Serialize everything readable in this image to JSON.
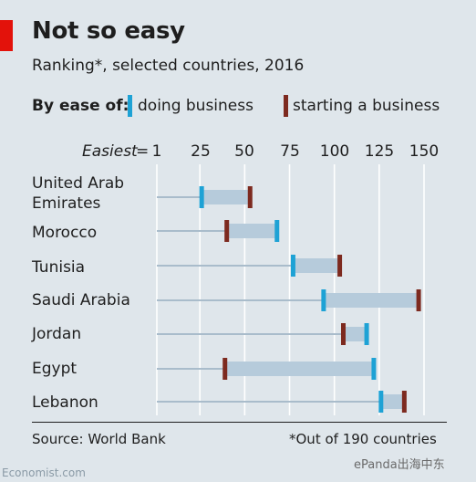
{
  "header": {
    "title": "Not so easy",
    "subtitle": "Ranking*, selected countries, 2016"
  },
  "legend": {
    "label": "By ease of:",
    "items": [
      {
        "name": "doing business",
        "color": "#1ea2d5"
      },
      {
        "name": "starting a business",
        "color": "#7d2a1f"
      }
    ]
  },
  "axis": {
    "prefix": "Easiest",
    "eq_sign": "=",
    "ticks": [
      "1",
      "25",
      "50",
      "75",
      "100",
      "125",
      "150"
    ]
  },
  "chart_data": {
    "type": "dot-range",
    "title": "Not so easy",
    "subtitle": "Ranking*, selected countries, 2016",
    "x_range": [
      1,
      150
    ],
    "x_ticks": [
      1,
      25,
      50,
      75,
      100,
      125,
      150
    ],
    "grid": true,
    "legend_placement": "top",
    "categories": [
      "United Arab\nEmirates",
      "Morocco",
      "Tunisia",
      "Saudi Arabia",
      "Jordan",
      "Egypt",
      "Lebanon"
    ],
    "series": [
      {
        "name": "doing business",
        "color": "#1ea2d5",
        "values": [
          26,
          68,
          77,
          94,
          118,
          122,
          126
        ]
      },
      {
        "name": "starting a business",
        "color": "#7d2a1f",
        "values": [
          53,
          40,
          103,
          147,
          105,
          39,
          139
        ]
      }
    ]
  },
  "footer": {
    "source": "Source: World Bank",
    "note": "*Out of 190 countries",
    "site": "Economist.com",
    "watermark": "ePanda出海中东"
  }
}
